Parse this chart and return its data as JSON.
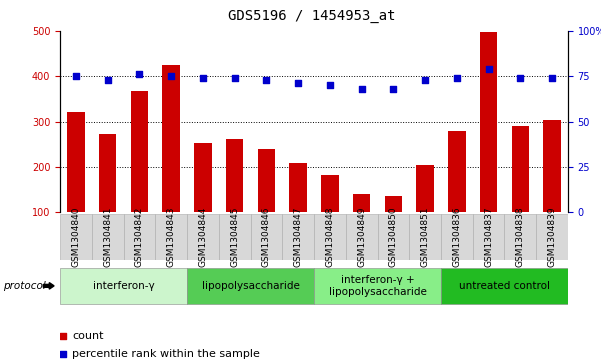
{
  "title": "GDS5196 / 1454953_at",
  "samples": [
    "GSM1304840",
    "GSM1304841",
    "GSM1304842",
    "GSM1304843",
    "GSM1304844",
    "GSM1304845",
    "GSM1304846",
    "GSM1304847",
    "GSM1304848",
    "GSM1304849",
    "GSM1304850",
    "GSM1304851",
    "GSM1304836",
    "GSM1304837",
    "GSM1304838",
    "GSM1304839"
  ],
  "counts": [
    322,
    272,
    368,
    425,
    253,
    262,
    240,
    208,
    183,
    140,
    136,
    204,
    280,
    497,
    291,
    303
  ],
  "percentiles": [
    75,
    73,
    76,
    75,
    74,
    74,
    73,
    71,
    70,
    68,
    68,
    73,
    74,
    79,
    74,
    74
  ],
  "ylim_left": [
    100,
    500
  ],
  "ylim_right": [
    0,
    100
  ],
  "yticks_left": [
    100,
    200,
    300,
    400,
    500
  ],
  "yticks_right": [
    0,
    25,
    50,
    75,
    100
  ],
  "bar_color": "#cc0000",
  "dot_color": "#0000cc",
  "groups": [
    {
      "label": "interferon-γ",
      "start": 0,
      "end": 4,
      "color": "#d4f7d4"
    },
    {
      "label": "lipopolysaccharide",
      "start": 4,
      "end": 8,
      "color": "#55cc55"
    },
    {
      "label": "interferon-γ +\nlipopolysaccharide",
      "start": 8,
      "end": 12,
      "color": "#88ee88"
    },
    {
      "label": "untreated control",
      "start": 12,
      "end": 16,
      "color": "#33bb33"
    }
  ],
  "protocol_label": "protocol",
  "legend_count": "count",
  "legend_percentile": "percentile rank within the sample",
  "bar_width": 0.55,
  "title_fontsize": 10,
  "label_fontsize": 6.5,
  "tick_fontsize": 7,
  "group_fontsize": 7.5
}
